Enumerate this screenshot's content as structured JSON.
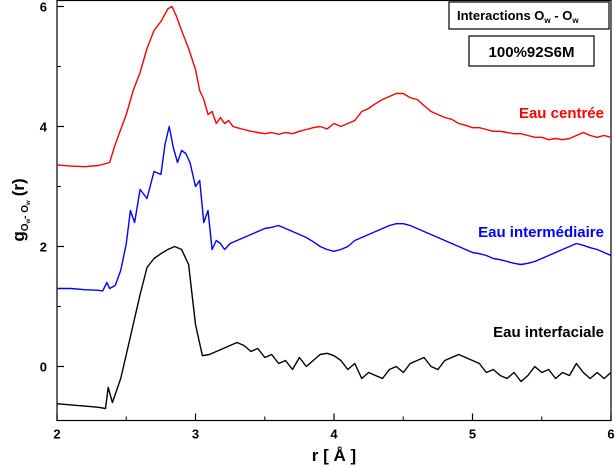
{
  "chart_data": {
    "type": "line",
    "title": "Interactions O",
    "title_sub1": "w",
    "title_sep": " - O",
    "title_sub2": "w",
    "subtitle": "100%92S6M",
    "xlabel": "r [ Å ]",
    "ylabel_main": "g",
    "ylabel_sub1": "O",
    "ylabel_subsub1": "w",
    "ylabel_sep": "- O",
    "ylabel_subsub2": "w",
    "ylabel_tail": "(r)",
    "xlim": [
      2,
      6
    ],
    "ylim": [
      -0.9,
      6.1
    ],
    "xticks": [
      "2",
      "3",
      "4",
      "5",
      "6"
    ],
    "yticks": [
      "0",
      "2",
      "4",
      "6"
    ],
    "grid": false,
    "series": [
      {
        "name": "Eau centrée",
        "color": "#ff0000",
        "x": [
          2.0,
          2.1,
          2.2,
          2.3,
          2.38,
          2.42,
          2.46,
          2.5,
          2.55,
          2.6,
          2.65,
          2.7,
          2.75,
          2.8,
          2.83,
          2.86,
          2.9,
          2.95,
          3.0,
          3.03,
          3.06,
          3.09,
          3.12,
          3.15,
          3.18,
          3.21,
          3.24,
          3.27,
          3.3,
          3.35,
          3.4,
          3.45,
          3.5,
          3.55,
          3.6,
          3.65,
          3.7,
          3.75,
          3.8,
          3.85,
          3.9,
          3.95,
          4.0,
          4.05,
          4.1,
          4.15,
          4.2,
          4.25,
          4.3,
          4.35,
          4.4,
          4.45,
          4.5,
          4.55,
          4.6,
          4.65,
          4.7,
          4.75,
          4.8,
          4.85,
          4.9,
          4.95,
          5.0,
          5.05,
          5.1,
          5.15,
          5.2,
          5.25,
          5.3,
          5.35,
          5.4,
          5.45,
          5.5,
          5.55,
          5.6,
          5.65,
          5.7,
          5.75,
          5.8,
          5.85,
          5.9,
          5.95,
          6.0
        ],
        "y": [
          3.36,
          3.34,
          3.33,
          3.35,
          3.4,
          3.7,
          3.95,
          4.2,
          4.6,
          4.9,
          5.3,
          5.6,
          5.75,
          5.96,
          6.0,
          5.85,
          5.6,
          5.3,
          4.95,
          4.6,
          4.45,
          4.2,
          4.25,
          4.05,
          4.15,
          4.05,
          4.1,
          4.0,
          3.98,
          3.95,
          3.92,
          3.9,
          3.88,
          3.9,
          3.87,
          3.9,
          3.88,
          3.92,
          3.95,
          3.98,
          4.0,
          3.96,
          4.05,
          4.0,
          4.05,
          4.1,
          4.25,
          4.3,
          4.38,
          4.45,
          4.5,
          4.55,
          4.55,
          4.48,
          4.45,
          4.35,
          4.25,
          4.2,
          4.15,
          4.12,
          4.05,
          4.02,
          3.98,
          3.98,
          3.95,
          3.92,
          3.92,
          3.9,
          3.88,
          3.88,
          3.85,
          3.82,
          3.82,
          3.78,
          3.8,
          3.78,
          3.8,
          3.85,
          3.9,
          3.85,
          3.82,
          3.85,
          3.82
        ]
      },
      {
        "name": "Eau intermédiaire",
        "color": "#0000ff",
        "x": [
          2.0,
          2.1,
          2.2,
          2.3,
          2.33,
          2.36,
          2.38,
          2.42,
          2.46,
          2.5,
          2.53,
          2.56,
          2.6,
          2.65,
          2.7,
          2.75,
          2.78,
          2.81,
          2.84,
          2.87,
          2.9,
          2.93,
          2.96,
          3.0,
          3.03,
          3.06,
          3.09,
          3.12,
          3.15,
          3.18,
          3.21,
          3.25,
          3.3,
          3.35,
          3.4,
          3.45,
          3.5,
          3.55,
          3.6,
          3.65,
          3.7,
          3.75,
          3.8,
          3.85,
          3.9,
          3.95,
          4.0,
          4.05,
          4.1,
          4.15,
          4.2,
          4.25,
          4.3,
          4.35,
          4.4,
          4.45,
          4.5,
          4.55,
          4.6,
          4.65,
          4.7,
          4.75,
          4.8,
          4.85,
          4.9,
          4.95,
          5.0,
          5.05,
          5.1,
          5.15,
          5.2,
          5.25,
          5.3,
          5.35,
          5.4,
          5.45,
          5.5,
          5.55,
          5.6,
          5.65,
          5.7,
          5.75,
          5.8,
          5.85,
          5.9,
          5.95,
          6.0
        ],
        "y": [
          1.3,
          1.3,
          1.28,
          1.27,
          1.26,
          1.4,
          1.3,
          1.35,
          1.6,
          2.05,
          2.6,
          2.4,
          2.95,
          2.8,
          3.25,
          3.2,
          3.7,
          4.0,
          3.65,
          3.4,
          3.6,
          3.55,
          3.4,
          3.0,
          3.1,
          2.4,
          2.6,
          1.95,
          2.1,
          2.05,
          1.95,
          2.05,
          2.1,
          2.15,
          2.2,
          2.25,
          2.3,
          2.32,
          2.35,
          2.3,
          2.25,
          2.2,
          2.15,
          2.08,
          2.0,
          1.95,
          1.92,
          1.95,
          2.0,
          2.1,
          2.15,
          2.2,
          2.25,
          2.3,
          2.35,
          2.38,
          2.38,
          2.35,
          2.3,
          2.25,
          2.2,
          2.15,
          2.1,
          2.05,
          2.0,
          1.95,
          1.9,
          1.88,
          1.85,
          1.8,
          1.78,
          1.75,
          1.72,
          1.7,
          1.72,
          1.75,
          1.8,
          1.85,
          1.9,
          1.95,
          2.0,
          2.05,
          2.02,
          1.98,
          1.95,
          1.9,
          1.85
        ]
      },
      {
        "name": "Eau interfaciale",
        "color": "#000000",
        "x": [
          2.0,
          2.1,
          2.2,
          2.3,
          2.35,
          2.37,
          2.4,
          2.43,
          2.46,
          2.5,
          2.55,
          2.6,
          2.65,
          2.7,
          2.75,
          2.8,
          2.85,
          2.9,
          2.95,
          3.0,
          3.05,
          3.1,
          3.15,
          3.2,
          3.25,
          3.3,
          3.35,
          3.4,
          3.45,
          3.5,
          3.55,
          3.6,
          3.65,
          3.7,
          3.75,
          3.8,
          3.85,
          3.9,
          3.95,
          4.0,
          4.05,
          4.1,
          4.15,
          4.2,
          4.25,
          4.3,
          4.35,
          4.4,
          4.45,
          4.5,
          4.55,
          4.6,
          4.65,
          4.7,
          4.75,
          4.8,
          4.85,
          4.9,
          4.95,
          5.0,
          5.05,
          5.1,
          5.15,
          5.2,
          5.25,
          5.3,
          5.35,
          5.4,
          5.45,
          5.5,
          5.55,
          5.6,
          5.65,
          5.7,
          5.75,
          5.8,
          5.85,
          5.9,
          5.95,
          6.0
        ],
        "y": [
          -0.62,
          -0.64,
          -0.66,
          -0.68,
          -0.7,
          -0.35,
          -0.6,
          -0.4,
          -0.2,
          0.2,
          0.7,
          1.2,
          1.65,
          1.8,
          1.88,
          1.95,
          2.0,
          1.95,
          1.7,
          0.7,
          0.18,
          0.2,
          0.25,
          0.3,
          0.35,
          0.4,
          0.35,
          0.25,
          0.3,
          0.15,
          0.2,
          0.05,
          0.1,
          -0.05,
          0.15,
          0.0,
          0.1,
          0.2,
          0.22,
          0.18,
          0.1,
          -0.05,
          0.05,
          -0.2,
          -0.1,
          -0.15,
          -0.2,
          -0.05,
          0.0,
          -0.1,
          0.05,
          0.1,
          0.15,
          0.0,
          -0.05,
          0.1,
          0.15,
          0.2,
          0.15,
          0.1,
          0.05,
          -0.1,
          -0.05,
          -0.15,
          -0.2,
          -0.1,
          -0.25,
          -0.15,
          0.0,
          -0.1,
          -0.05,
          -0.2,
          -0.1,
          -0.15,
          0.05,
          -0.1,
          -0.2,
          -0.1,
          -0.2,
          -0.1
        ]
      }
    ]
  }
}
